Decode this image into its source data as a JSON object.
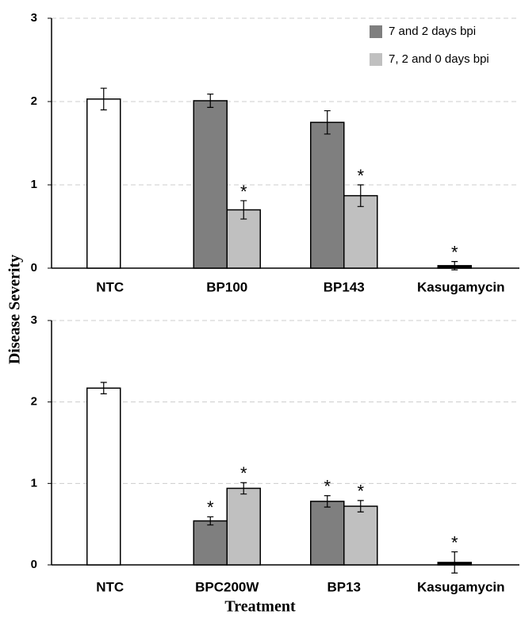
{
  "chart_data": [
    {
      "type": "bar",
      "ylabel": "Disease Severity",
      "categories": [
        "NTC",
        "BP100",
        "BP143",
        "Kasugamycin"
      ],
      "ylim": [
        0,
        3
      ],
      "yticks": [
        0,
        1,
        2,
        3
      ],
      "grid": true,
      "legend": "top-right",
      "series": [
        {
          "name": "7 and 2 days bpi",
          "color": "#7f7f7f",
          "values": [
            null,
            2.01,
            1.75,
            null
          ],
          "errors": [
            null,
            0.08,
            0.14,
            null
          ],
          "marks": [
            null,
            null,
            null,
            null
          ]
        },
        {
          "name": "7, 2 and 0 days bpi",
          "color": "#c0c0c0",
          "values": [
            null,
            0.7,
            0.87,
            null
          ],
          "errors": [
            null,
            0.11,
            0.13,
            null
          ],
          "marks": [
            null,
            "*",
            "*",
            null
          ]
        }
      ],
      "controls": {
        "colors": [
          "#ffffff",
          null,
          null,
          "#000000"
        ],
        "values": [
          2.03,
          null,
          null,
          0.03
        ],
        "errors": [
          0.13,
          null,
          null,
          0.05
        ],
        "marks": [
          null,
          null,
          null,
          "*"
        ]
      }
    },
    {
      "type": "bar",
      "xlabel": "Treatment",
      "categories": [
        "NTC",
        "BPC200W",
        "BP13",
        "Kasugamycin"
      ],
      "ylim": [
        0,
        3
      ],
      "yticks": [
        0,
        1,
        2,
        3
      ],
      "grid": true,
      "series": [
        {
          "color": "#7f7f7f",
          "values": [
            null,
            0.54,
            0.78,
            null
          ],
          "errors": [
            null,
            0.05,
            0.07,
            null
          ],
          "marks": [
            null,
            "*",
            "*",
            null
          ]
        },
        {
          "color": "#c0c0c0",
          "values": [
            null,
            0.94,
            0.72,
            null
          ],
          "errors": [
            null,
            0.07,
            0.07,
            null
          ],
          "marks": [
            null,
            "*",
            "*",
            null
          ]
        }
      ],
      "controls": {
        "colors": [
          "#ffffff",
          null,
          null,
          "#000000"
        ],
        "values": [
          2.17,
          null,
          null,
          0.03
        ],
        "errors": [
          0.07,
          null,
          null,
          0.13
        ],
        "marks": [
          null,
          null,
          null,
          "*"
        ]
      }
    }
  ]
}
